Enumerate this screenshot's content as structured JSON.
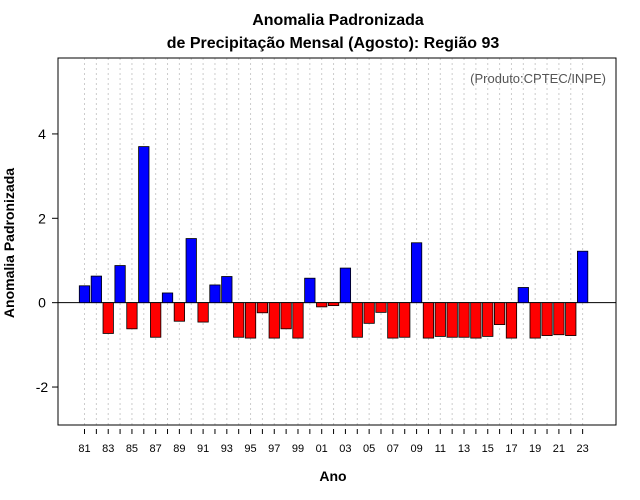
{
  "chart_data": {
    "type": "bar",
    "title": "Anomalia Padronizada",
    "subtitle": "de Precipitação Mensal (Agosto): Região 93",
    "xlabel": "Ano",
    "ylabel": "Anomalia Padronizada",
    "annotation": "(Produto:CPTEC/INPE)",
    "ylim": [
      -2.9,
      5.8
    ],
    "yticks": [
      -2,
      0,
      2,
      4
    ],
    "grid": true,
    "colors": {
      "positive": "#0000ff",
      "negative": "#ff0000",
      "outline": "#000000",
      "grid": "#cccccc"
    },
    "categories": [
      "81",
      "82",
      "83",
      "84",
      "85",
      "86",
      "87",
      "88",
      "89",
      "90",
      "91",
      "92",
      "93",
      "94",
      "95",
      "96",
      "97",
      "98",
      "99",
      "00",
      "01",
      "02",
      "03",
      "04",
      "05",
      "06",
      "07",
      "08",
      "09",
      "10",
      "11",
      "12",
      "13",
      "14",
      "15",
      "16",
      "17",
      "18",
      "19",
      "20",
      "21",
      "22",
      "23"
    ],
    "values": [
      0.4,
      0.63,
      -0.73,
      0.88,
      -0.62,
      3.7,
      -0.82,
      0.23,
      -0.44,
      1.52,
      -0.46,
      0.42,
      0.62,
      -0.82,
      -0.84,
      -0.24,
      -0.84,
      -0.62,
      -0.84,
      0.58,
      -0.1,
      -0.07,
      0.82,
      -0.82,
      -0.49,
      -0.23,
      -0.84,
      -0.82,
      1.42,
      -0.84,
      -0.8,
      -0.82,
      -0.82,
      -0.84,
      -0.8,
      -0.52,
      -0.84,
      0.36,
      -0.84,
      -0.78,
      -0.76,
      -0.78,
      1.22
    ],
    "xtick_labels": [
      "81",
      "83",
      "85",
      "87",
      "89",
      "91",
      "93",
      "95",
      "97",
      "99",
      "01",
      "03",
      "05",
      "07",
      "09",
      "11",
      "13",
      "15",
      "17",
      "19",
      "21",
      "23"
    ]
  }
}
